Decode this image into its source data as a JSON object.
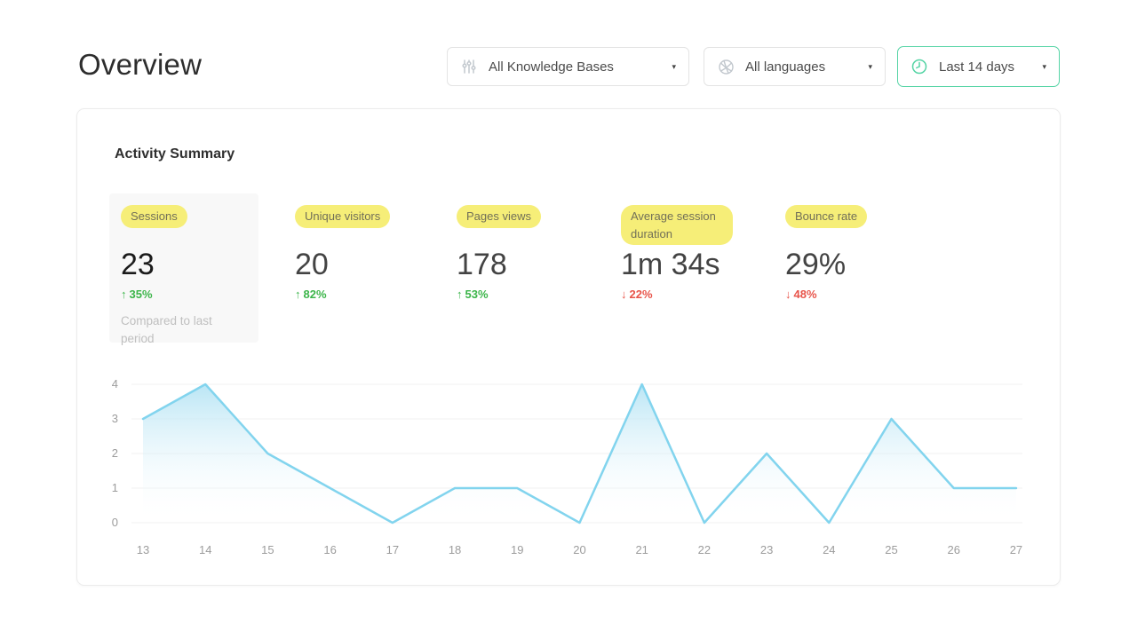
{
  "page": {
    "title": "Overview"
  },
  "icons": {
    "caret": "▾"
  },
  "filters": {
    "knowledge_bases": {
      "label": "All Knowledge Bases",
      "icon": "sliders-icon"
    },
    "languages": {
      "label": "All languages",
      "icon": "globe-icon"
    },
    "date_range": {
      "label": "Last 14 days",
      "icon": "clock-icon"
    }
  },
  "card": {
    "title": "Activity Summary",
    "metrics": [
      {
        "label": "Sessions",
        "value": "23",
        "arrow": "↑",
        "change": "35%",
        "direction": "up",
        "change_class": "metric-change up",
        "note": "Compared to last period"
      },
      {
        "label": "Unique visitors",
        "value": "20",
        "arrow": "↑",
        "change": "82%",
        "direction": "up",
        "change_class": "metric-change up"
      },
      {
        "label": "Pages views",
        "value": "178",
        "arrow": "↑",
        "change": "53%",
        "direction": "up",
        "change_class": "metric-change up"
      },
      {
        "label": "Average session duration",
        "value": "1m 34s",
        "arrow": "↓",
        "change": "22%",
        "direction": "down",
        "change_class": "metric-change down"
      },
      {
        "label": "Bounce rate",
        "value": "29%",
        "arrow": "↓",
        "change": "48%",
        "direction": "down",
        "change_class": "metric-change down"
      }
    ]
  },
  "chart_data": {
    "type": "area",
    "title": "",
    "xlabel": "",
    "ylabel": "",
    "x": [
      13,
      14,
      15,
      16,
      17,
      18,
      19,
      20,
      21,
      22,
      23,
      24,
      25,
      26,
      27
    ],
    "values": [
      3,
      4,
      2,
      1,
      0,
      1,
      1,
      0,
      4,
      0,
      2,
      0,
      3,
      1,
      1
    ],
    "yticks": [
      0,
      1,
      2,
      3,
      4
    ],
    "ylim": [
      0,
      4
    ],
    "grid": true,
    "legend": "none",
    "line_color": "#82d4ee",
    "fill_top": "#aee1f3",
    "grid_color": "#f1f1f1"
  },
  "colors": {
    "accent_green": "#55d4a5",
    "positive": "#3cb54a",
    "negative": "#e8544a",
    "highlight_yellow": "#f6ee78"
  }
}
